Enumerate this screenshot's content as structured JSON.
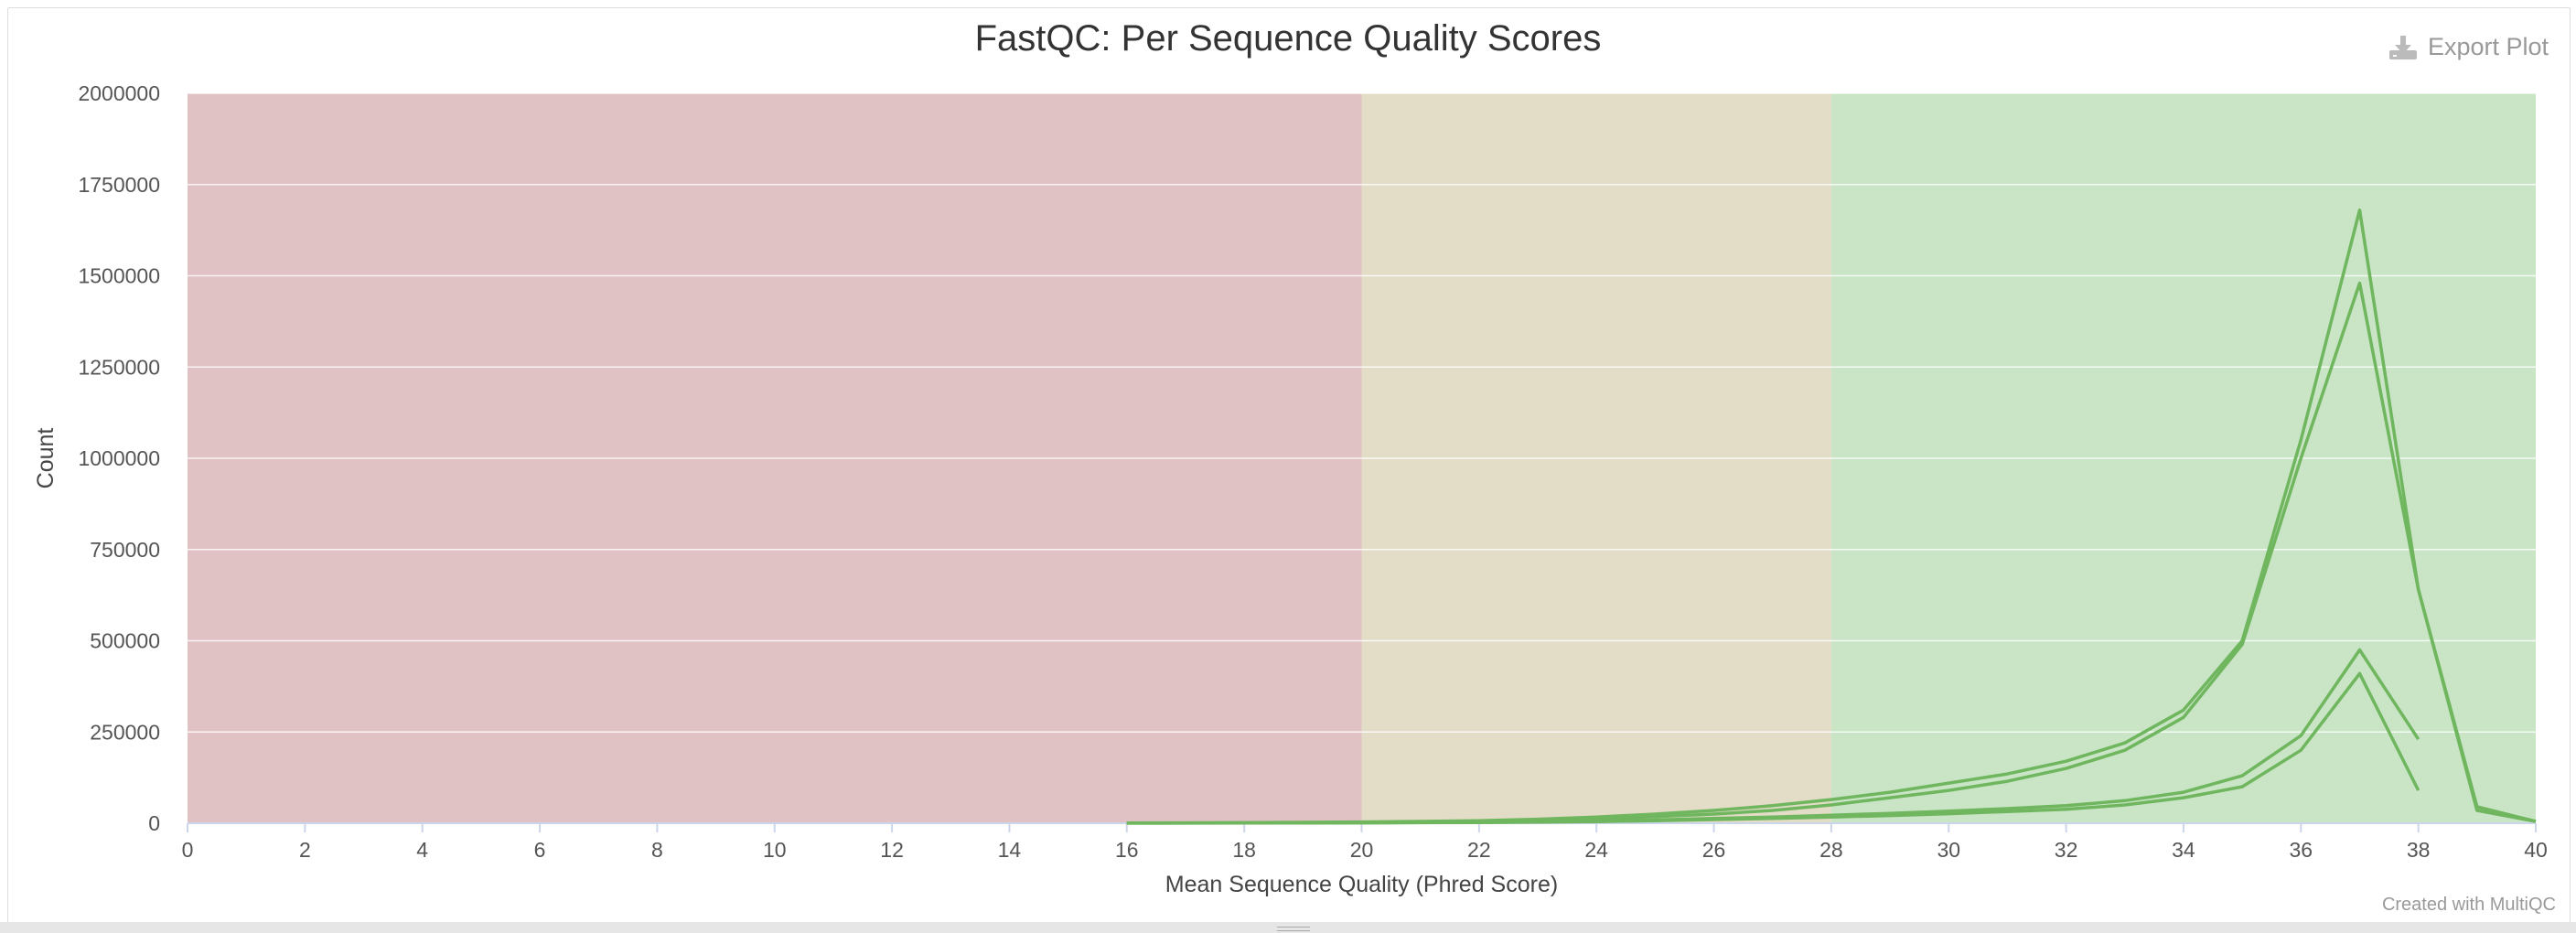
{
  "chart_data": {
    "type": "line",
    "title": "FastQC: Per Sequence Quality Scores",
    "xlabel": "Mean Sequence Quality (Phred Score)",
    "ylabel": "Count",
    "xlim": [
      0,
      40
    ],
    "ylim": [
      0,
      2000000
    ],
    "x_ticks": [
      0,
      2,
      4,
      6,
      8,
      10,
      12,
      14,
      16,
      18,
      20,
      22,
      24,
      26,
      28,
      30,
      32,
      34,
      36,
      38,
      40
    ],
    "y_ticks": [
      0,
      250000,
      500000,
      750000,
      1000000,
      1250000,
      1500000,
      1750000,
      2000000
    ],
    "grid": true,
    "bands": [
      {
        "from": 0,
        "to": 20,
        "color": "#e0c1c4"
      },
      {
        "from": 20,
        "to": 28,
        "color": "#e3dcc6"
      },
      {
        "from": 28,
        "to": 40,
        "color": "#c9e5c5"
      }
    ],
    "line_color": "#6fb65f",
    "series": [
      {
        "x": [
          16,
          17,
          18,
          19,
          20,
          21,
          22,
          23,
          24,
          25,
          26,
          27,
          28,
          29,
          30,
          31,
          32,
          33,
          34,
          35,
          36,
          37,
          38,
          39,
          40
        ],
        "values": [
          500,
          800,
          1200,
          1800,
          2500,
          3500,
          5000,
          8000,
          12000,
          18000,
          25000,
          35000,
          50000,
          70000,
          90000,
          115000,
          150000,
          200000,
          290000,
          490000,
          1000000,
          1480000,
          640000,
          45000,
          5000
        ]
      },
      {
        "x": [
          16,
          17,
          18,
          19,
          20,
          21,
          22,
          23,
          24,
          25,
          26,
          27,
          28,
          29,
          30,
          31,
          32,
          33,
          34,
          35,
          36,
          37,
          38,
          39,
          40
        ],
        "values": [
          500,
          900,
          1500,
          2500,
          3500,
          5000,
          7000,
          11000,
          17000,
          25000,
          35000,
          48000,
          65000,
          85000,
          110000,
          135000,
          170000,
          220000,
          310000,
          500000,
          1050000,
          1680000,
          640000,
          35000,
          5000
        ]
      },
      {
        "x": [
          16,
          17,
          18,
          19,
          20,
          21,
          22,
          23,
          24,
          25,
          26,
          27,
          28,
          29,
          30,
          31,
          32,
          33,
          34,
          35,
          36,
          37,
          38
        ],
        "values": [
          300,
          400,
          600,
          900,
          1300,
          1800,
          2500,
          4000,
          6000,
          9000,
          13000,
          17000,
          22000,
          27000,
          33000,
          40000,
          48000,
          62000,
          85000,
          130000,
          240000,
          475000,
          230000
        ]
      },
      {
        "x": [
          16,
          17,
          18,
          19,
          20,
          21,
          22,
          23,
          24,
          25,
          26,
          27,
          28,
          29,
          30,
          31,
          32,
          33,
          34,
          35,
          36,
          37,
          38
        ],
        "values": [
          200,
          300,
          500,
          700,
          1000,
          1500,
          2000,
          3000,
          4500,
          7000,
          10000,
          13000,
          17000,
          21000,
          26000,
          32000,
          38000,
          50000,
          70000,
          100000,
          200000,
          410000,
          90000
        ]
      }
    ]
  },
  "toolbar": {
    "export_label": "Export Plot",
    "export_icon": "download-icon"
  },
  "footer": {
    "credit": "Created with MultiQC"
  }
}
